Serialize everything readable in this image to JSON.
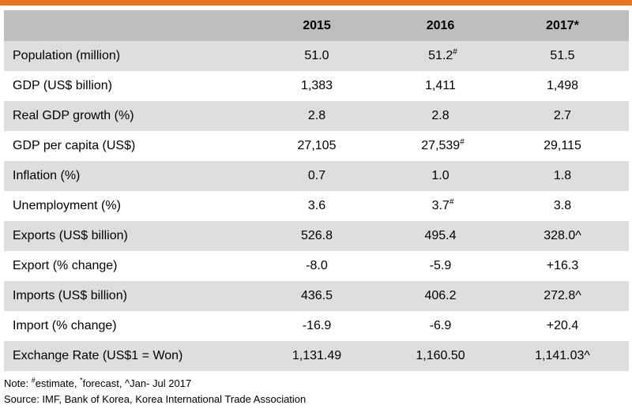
{
  "table": {
    "header": {
      "label": "",
      "col_2015": "2015",
      "col_2016": "2016",
      "col_2017": "2017*"
    },
    "rows": [
      {
        "label": "Population (million)",
        "v2015": "51.0",
        "v2016": "51.2",
        "v2016_sup": "#",
        "v2017": "51.5",
        "v2017_sup": ""
      },
      {
        "label": "GDP (US$ billion)",
        "v2015": "1,383",
        "v2016": "1,411",
        "v2016_sup": "",
        "v2017": "1,498",
        "v2017_sup": ""
      },
      {
        "label": "Real GDP growth (%)",
        "v2015": "2.8",
        "v2016": "2.8",
        "v2016_sup": "",
        "v2017": "2.7",
        "v2017_sup": ""
      },
      {
        "label": "GDP per capita (US$)",
        "v2015": "27,105",
        "v2016": "27,539",
        "v2016_sup": "#",
        "v2017": "29,115",
        "v2017_sup": ""
      },
      {
        "label": "Inflation (%)",
        "v2015": "0.7",
        "v2016": "1.0",
        "v2016_sup": "",
        "v2017": "1.8",
        "v2017_sup": ""
      },
      {
        "label": "Unemployment (%)",
        "v2015": "3.6",
        "v2016": "3.7",
        "v2016_sup": "#",
        "v2017": "3.8",
        "v2017_sup": ""
      },
      {
        "label": "Exports (US$ billion)",
        "v2015": "526.8",
        "v2016": "495.4",
        "v2016_sup": "",
        "v2017": "328.0^",
        "v2017_sup": ""
      },
      {
        "label": "Export (% change)",
        "v2015": "-8.0",
        "v2016": "-5.9",
        "v2016_sup": "",
        "v2017": "+16.3",
        "v2017_sup": ""
      },
      {
        "label": "Imports (US$ billion)",
        "v2015": "436.5",
        "v2016": "406.2",
        "v2016_sup": "",
        "v2017": "272.8^",
        "v2017_sup": ""
      },
      {
        "label": "Import (% change)",
        "v2015": "-16.9",
        "v2016": "-6.9",
        "v2016_sup": "",
        "v2017": "+20.4",
        "v2017_sup": ""
      },
      {
        "label": "Exchange Rate (US$1 = Won)",
        "v2015": "1,131.49",
        "v2016": "1,160.50",
        "v2016_sup": "",
        "v2017": "1,141.03^",
        "v2017_sup": ""
      }
    ]
  },
  "notes": {
    "note_prefix": "Note: ",
    "estimate_sup": "#",
    "estimate_text": "estimate, ",
    "forecast_sup": "*",
    "forecast_text": "forecast, ^Jan- Jul 2017",
    "source": "Source: IMF, Bank of Korea, Korea International Trade Association"
  },
  "colors": {
    "accent_bar": "#e8731c",
    "header_bg": "#bebebe",
    "shaded_row_bg": "#dedede",
    "plain_row_bg": "#ffffff"
  }
}
